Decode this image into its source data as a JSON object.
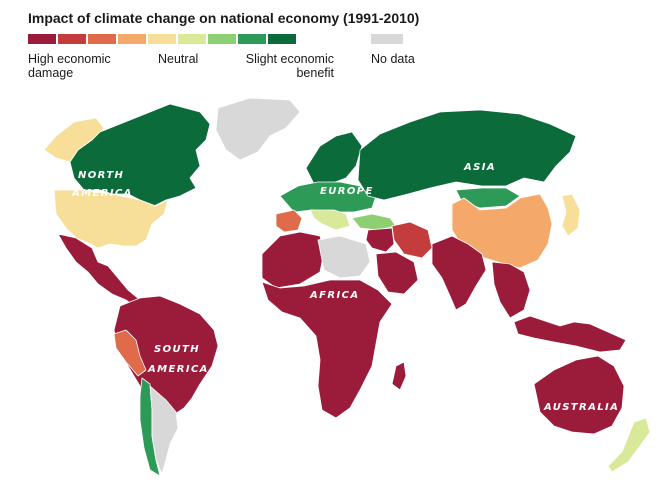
{
  "title": "Impact of climate change on national economy (1991-2010)",
  "legend": {
    "scale_colors": [
      "#9b1b3b",
      "#c43c3c",
      "#e06b4b",
      "#f4a96a",
      "#f7df9a",
      "#d9e99a",
      "#8ecf74",
      "#2e9a58",
      "#0c6b3a"
    ],
    "no_data_color": "#d8d8d8",
    "labels": {
      "high_damage": "High economic damage",
      "neutral": "Neutral",
      "slight_benefit": "Slight economic benefit",
      "no_data": "No data"
    }
  },
  "continent_labels": {
    "north_america_1": "NORTH",
    "north_america_2": "AMERICA",
    "south_america_1": "SOUTH",
    "south_america_2": "AMERICA",
    "europe": "EUROPE",
    "asia": "ASIA",
    "africa": "AFRICA",
    "australia": "AUSTRALIA"
  },
  "region_colors": {
    "canada": "#0c6b3a",
    "alaska": "#f7df9a",
    "usa": "#f7df9a",
    "greenland": "#d8d8d8",
    "mexico_central_america": "#9b1b3b",
    "south_america": "#9b1b3b",
    "peru": "#e06b4b",
    "chile": "#2e9a58",
    "argentina": "#d8d8d8",
    "northern_europe": "#0c6b3a",
    "central_europe": "#2e9a58",
    "spain": "#e06b4b",
    "italy_balkans": "#d9e99a",
    "turkey": "#8ecf74",
    "russia": "#0c6b3a",
    "mongolia": "#2e9a58",
    "china": "#f4a96a",
    "iran": "#c43c3c",
    "middle_east": "#9b1b3b",
    "arabia": "#9b1b3b",
    "north_africa": "#9b1b3b",
    "libya_egypt": "#d8d8d8",
    "subsaharan_africa": "#9b1b3b",
    "madagascar": "#9b1b3b",
    "india": "#9b1b3b",
    "southeast_asia": "#9b1b3b",
    "japan": "#f7df9a",
    "indonesia": "#9b1b3b",
    "australia": "#9b1b3b",
    "new_zealand": "#d9e99a",
    "antarctic_islands": "#d8d8d8"
  }
}
